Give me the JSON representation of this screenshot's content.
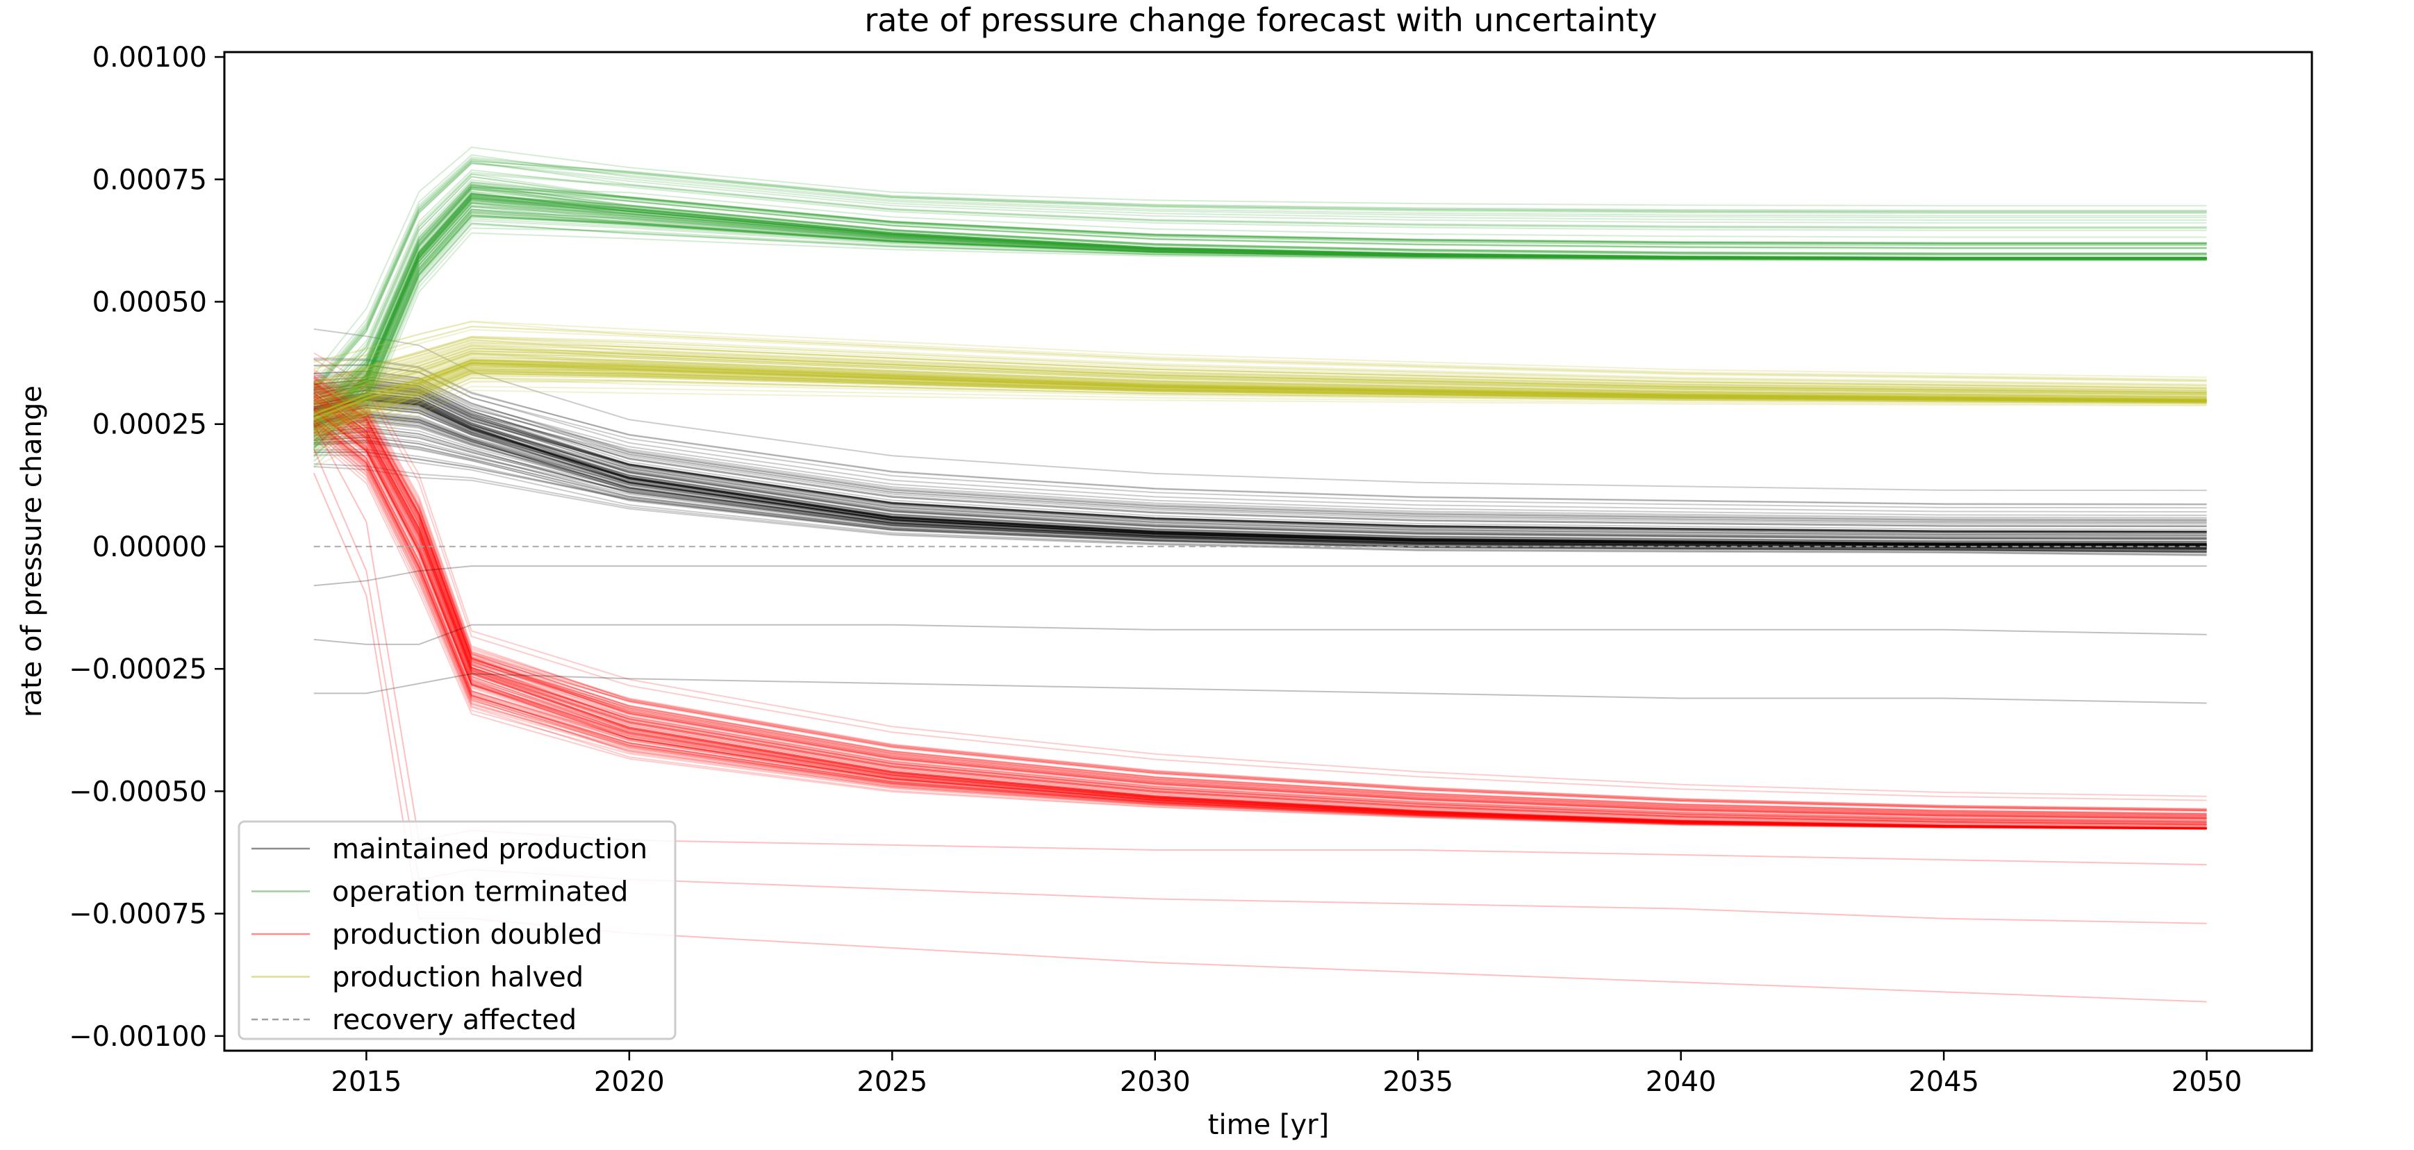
{
  "chart_data": {
    "type": "line",
    "title": "rate of pressure change forecast with uncertainty",
    "xlabel": "time [yr]",
    "ylabel": "rate of pressure change",
    "xlim": [
      2012.3,
      2052.0
    ],
    "ylim": [
      -0.00103,
      0.00101
    ],
    "x_ticks": [
      2015,
      2020,
      2025,
      2030,
      2035,
      2040,
      2045,
      2050
    ],
    "x_tick_labels": [
      "2015",
      "2020",
      "2025",
      "2030",
      "2035",
      "2040",
      "2045",
      "2050"
    ],
    "y_ticks": [
      0.001,
      0.00075,
      0.0005,
      0.00025,
      0.0,
      -0.00025,
      -0.0005,
      -0.00075,
      -0.001
    ],
    "y_tick_labels": [
      "0.00100",
      "0.00075",
      "0.00050",
      "0.00025",
      "0.00000",
      "−0.00025",
      "−0.00050",
      "−0.00075",
      "−0.00100"
    ],
    "grid": false,
    "legend_position": "lower-left",
    "x": [
      2014,
      2015,
      2016,
      2017,
      2020,
      2025,
      2030,
      2035,
      2040,
      2045,
      2050
    ],
    "series": [
      {
        "name": "maintained production",
        "color": "#000000",
        "line_style": "solid",
        "member_count": 100,
        "median_values": [
          0.00028,
          0.0003,
          0.00029,
          0.00024,
          0.00014,
          6e-05,
          3e-05,
          1.5e-05,
          1e-05,
          6e-06,
          5e-06
        ],
        "band_low": [
          0.0001,
          8e-05,
          6e-05,
          5e-05,
          2e-05,
          -1e-05,
          -2e-05,
          -3e-05,
          -3e-05,
          -3e-05,
          -4e-05
        ],
        "band_high": [
          0.00047,
          0.00045,
          0.00043,
          0.0004,
          0.00033,
          0.00026,
          0.00022,
          0.0002,
          0.00019,
          0.00018,
          0.00018
        ]
      },
      {
        "name": "operation terminated",
        "color": "#2ca02c",
        "line_style": "solid",
        "member_count": 100,
        "median_values": [
          0.00025,
          0.00035,
          0.0006,
          0.00072,
          0.00069,
          0.00064,
          0.00061,
          0.000598,
          0.000592,
          0.00059,
          0.00059
        ],
        "band_low": [
          0.00012,
          0.00022,
          0.00048,
          0.00058,
          0.00058,
          0.00058,
          0.00058,
          0.00058,
          0.00058,
          0.00058,
          0.00058
        ],
        "band_high": [
          0.00042,
          0.00058,
          0.00081,
          0.00091,
          0.00088,
          0.00083,
          0.00083,
          0.00083,
          0.00083,
          0.00083,
          0.00083
        ]
      },
      {
        "name": "production doubled",
        "color": "#ff0000",
        "line_style": "solid",
        "member_count": 100,
        "median_values": [
          0.0003,
          0.00022,
          2e-05,
          -0.00026,
          -0.00037,
          -0.00046,
          -0.00051,
          -0.00054,
          -0.00056,
          -0.00057,
          -0.000575
        ],
        "band_low": [
          0.00016,
          6e-05,
          -0.00018,
          -0.00043,
          -0.00051,
          -0.00055,
          -0.00056,
          -0.00057,
          -0.00058,
          -0.00058,
          -0.00058
        ],
        "band_high": [
          0.00042,
          0.00036,
          0.00018,
          -0.00013,
          -0.00021,
          -0.00031,
          -0.00037,
          -0.00041,
          -0.00044,
          -0.00046,
          -0.00047
        ]
      },
      {
        "name": "production halved",
        "color": "#bcbd22",
        "line_style": "solid",
        "member_count": 100,
        "median_values": [
          0.00027,
          0.00031,
          0.00034,
          0.00038,
          0.00037,
          0.00035,
          0.00033,
          0.00032,
          0.00031,
          0.000305,
          0.0003
        ],
        "band_low": [
          0.00012,
          0.00018,
          0.00024,
          0.00028,
          0.00028,
          0.00028,
          0.00028,
          0.00028,
          0.00028,
          0.00028,
          0.00028
        ],
        "band_high": [
          0.00043,
          0.00045,
          0.00048,
          0.00052,
          0.0005,
          0.00047,
          0.00044,
          0.00042,
          0.0004,
          0.00039,
          0.00038
        ]
      },
      {
        "name": "recovery affected",
        "color": "#a0a0a0",
        "line_style": "dashed",
        "member_count": 1,
        "median_values": [
          0,
          0,
          0,
          0,
          0,
          0,
          0,
          0,
          0,
          0,
          0
        ]
      }
    ],
    "outlier_series": [
      {
        "series": "maintained production",
        "values": [
          -0.0003,
          -0.0003,
          -0.00028,
          -0.00026,
          -0.00027,
          -0.00028,
          -0.00029,
          -0.0003,
          -0.00031,
          -0.00031,
          -0.00032
        ]
      },
      {
        "series": "maintained production",
        "values": [
          -0.00019,
          -0.0002,
          -0.0002,
          -0.00016,
          -0.00016,
          -0.00016,
          -0.00017,
          -0.00017,
          -0.00017,
          -0.00017,
          -0.00018
        ]
      },
      {
        "series": "maintained production",
        "values": [
          -8e-05,
          -7e-05,
          -5e-05,
          -4e-05,
          -4e-05,
          -4e-05,
          -4e-05,
          -4e-05,
          -4e-05,
          -4e-05,
          -4e-05
        ]
      },
      {
        "series": "production doubled",
        "values": [
          0.00025,
          5e-05,
          -0.0006,
          -0.00058,
          -0.0006,
          -0.00061,
          -0.00062,
          -0.00062,
          -0.00063,
          -0.00064,
          -0.00065
        ]
      },
      {
        "series": "production doubled",
        "values": [
          0.0002,
          -5e-05,
          -0.00068,
          -0.00066,
          -0.00068,
          -0.0007,
          -0.00072,
          -0.00073,
          -0.00074,
          -0.00076,
          -0.00077
        ]
      },
      {
        "series": "production doubled",
        "values": [
          0.00015,
          -0.0001,
          -0.00076,
          -0.00076,
          -0.00079,
          -0.00082,
          -0.00085,
          -0.00087,
          -0.00089,
          -0.00091,
          -0.00093
        ]
      }
    ],
    "legend": [
      {
        "label": "maintained production",
        "color": "#8c8c8c",
        "line_style": "solid"
      },
      {
        "label": "operation terminated",
        "color": "#9fcf9f",
        "line_style": "solid"
      },
      {
        "label": "production doubled",
        "color": "#ff8a8a",
        "line_style": "solid"
      },
      {
        "label": "production halved",
        "color": "#dede8e",
        "line_style": "solid"
      },
      {
        "label": "recovery affected",
        "color": "#a0a0a0",
        "line_style": "dashed"
      }
    ]
  }
}
